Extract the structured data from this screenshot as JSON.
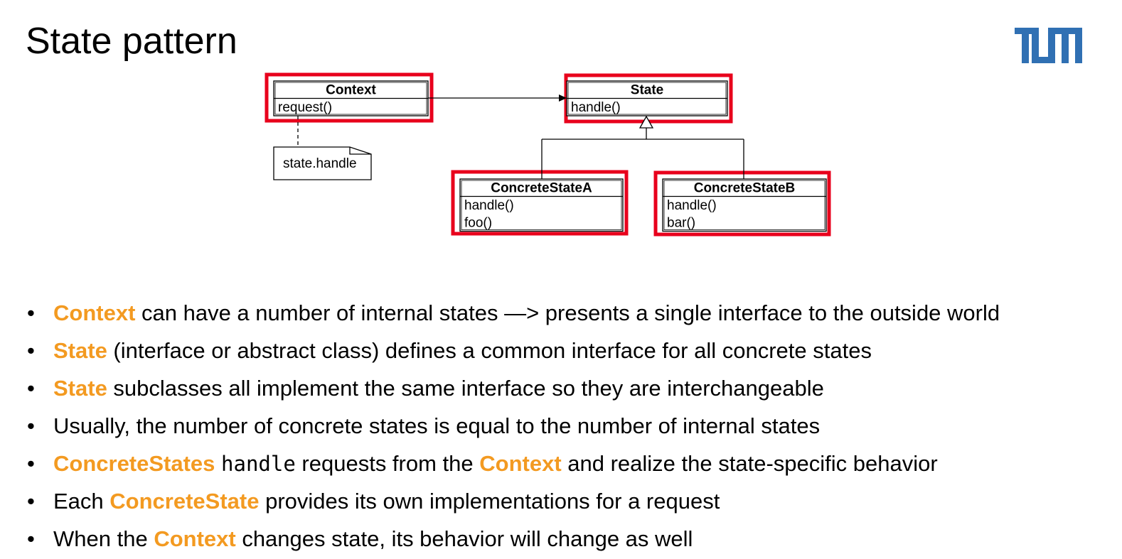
{
  "header": {
    "title": "State pattern"
  },
  "diagram": {
    "classes": [
      {
        "name": "Context",
        "methods": [
          "request()"
        ]
      },
      {
        "name": "State",
        "methods": [
          "handle()"
        ]
      },
      {
        "name": "ConcreteStateA",
        "methods": [
          "handle()",
          "foo()"
        ]
      },
      {
        "name": "ConcreteStateB",
        "methods": [
          "handle()",
          "bar()"
        ]
      }
    ],
    "note": "state.handle"
  },
  "bullets": [
    [
      {
        "text": "Context",
        "emphasis": true
      },
      {
        "text": " can have a number of internal states —> presents a single interface to the outside world"
      }
    ],
    [
      {
        "text": "State",
        "emphasis": true
      },
      {
        "text": " (interface or abstract class) defines a common interface for all concrete states"
      }
    ],
    [
      {
        "text": "State",
        "emphasis": true
      },
      {
        "text": " subclasses all implement the same interface so they are interchangeable"
      }
    ],
    [
      {
        "text": "Usually, the number of concrete states is equal to the number of internal states"
      }
    ],
    [
      {
        "text": "ConcreteStates",
        "emphasis": true
      },
      {
        "text": " "
      },
      {
        "text": "handle",
        "code": true
      },
      {
        "text": " requests from the "
      },
      {
        "text": "Context",
        "emphasis": true
      },
      {
        "text": " and realize the state-specific behavior"
      }
    ],
    [
      {
        "text": "Each "
      },
      {
        "text": "ConcreteState",
        "emphasis": true
      },
      {
        "text": " provides its own implementations for a request"
      }
    ],
    [
      {
        "text": "When the "
      },
      {
        "text": "Context",
        "emphasis": true
      },
      {
        "text": " changes state, its behavior will change as well"
      }
    ]
  ]
}
